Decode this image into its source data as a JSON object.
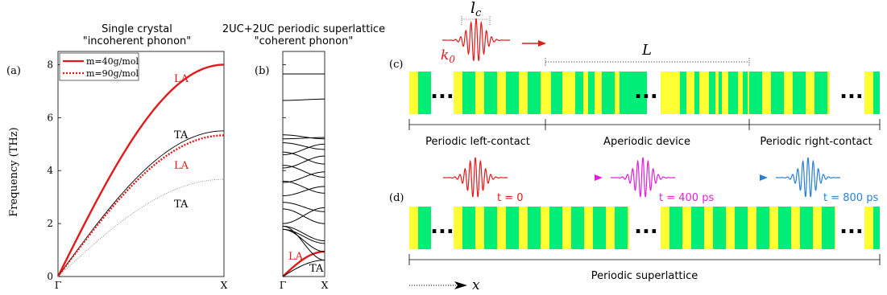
{
  "colors": {
    "red": "#e31a1c",
    "magenta": "#e020d8",
    "blue": "#2a7fd4",
    "yellow": "#ffff33",
    "green": "#00ee77",
    "black": "#000000",
    "gray": "#888888"
  },
  "panel_a": {
    "label": "(a)",
    "title_line1": "Single crystal",
    "title_line2": "\"incoherent phonon\"",
    "ylabel": "Frequency (THz)",
    "legend": [
      "m=40g/mol",
      "m=90g/mol"
    ],
    "annotations": {
      "la_top": "LA",
      "ta_top": "TA",
      "la_mid": "LA",
      "ta_bottom": "TA"
    }
  },
  "panel_b": {
    "label": "(b)",
    "title_line1": "2UC+2UC periodic superlattice",
    "title_line2": "\"coherent phonon\"",
    "annotations": {
      "la": "LA",
      "ta": "TA"
    }
  },
  "panel_c": {
    "label": "(c)",
    "lc": "l",
    "lc_sub": "c",
    "k0": "k",
    "k0_sub": "0",
    "L": "L",
    "left_contact": "Periodic left-contact",
    "device": "Aperiodic device",
    "right_contact": "Periodic right-contact",
    "ellipsis": "..."
  },
  "panel_d": {
    "label": "(d)",
    "t0": "t = 0",
    "t400": "t = 400 ps",
    "t800": "t = 800 ps",
    "superlattice": "Periodic superlattice",
    "x_axis": "x",
    "ellipsis": "..."
  },
  "chart_data": [
    {
      "type": "line",
      "title": "",
      "xlabel": "",
      "ylabel": "Frequency (THz)",
      "xticks": [
        "Γ",
        "X"
      ],
      "yticks": [
        0,
        2,
        4,
        6,
        8
      ],
      "ylim": [
        0,
        8.5
      ],
      "x": [
        0,
        0.25,
        0.5,
        0.75,
        1.0
      ],
      "series": [
        {
          "name": "m=40g/mol",
          "branch": "LA",
          "values": [
            0,
            3.06,
            5.66,
            7.39,
            8.0
          ],
          "color": "#e31a1c",
          "style": "solid",
          "width": "thick"
        },
        {
          "name": "m=40g/mol",
          "branch": "TA",
          "values": [
            0,
            2.1,
            3.89,
            5.08,
            5.5
          ],
          "color": "#000000",
          "style": "solid",
          "width": "thin"
        },
        {
          "name": "m=90g/mol",
          "branch": "LA",
          "values": [
            0,
            2.04,
            3.77,
            4.93,
            5.33
          ],
          "color": "#e31a1c",
          "style": "dotted",
          "width": "thick"
        },
        {
          "name": "m=90g/mol",
          "branch": "TA",
          "values": [
            0,
            1.4,
            2.59,
            3.39,
            3.67
          ],
          "color": "#888888",
          "style": "dotted",
          "width": "thin"
        }
      ],
      "legend_position": "top-left"
    },
    {
      "type": "line",
      "title": "",
      "xticks": [
        "Γ",
        "X"
      ],
      "ylim": [
        0,
        8.5
      ],
      "note": "folded superlattice phonon dispersion"
    }
  ]
}
